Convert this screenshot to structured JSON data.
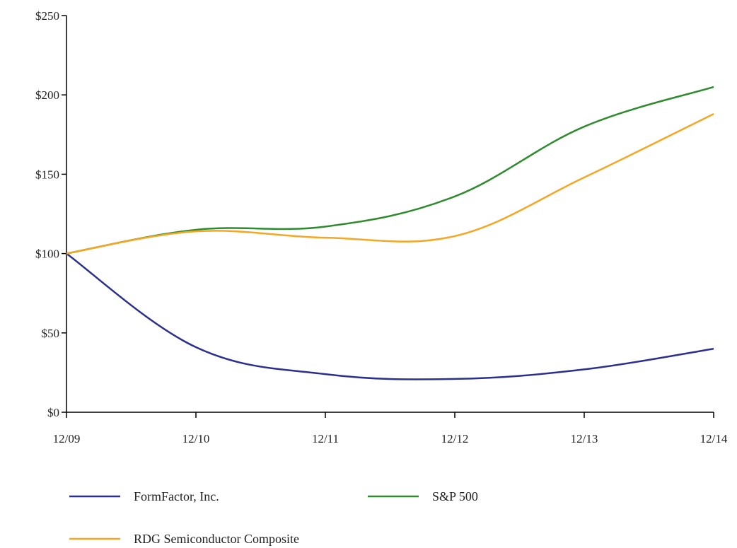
{
  "chart_data": {
    "type": "line",
    "title": "",
    "xlabel": "",
    "ylabel": "",
    "categories": [
      "12/09",
      "12/10",
      "12/11",
      "12/12",
      "12/13",
      "12/14"
    ],
    "y_ticks": [
      "$0",
      "$50",
      "$100",
      "$150",
      "$200",
      "$250"
    ],
    "ylim": [
      0,
      250
    ],
    "grid": false,
    "legend_position": "bottom",
    "series": [
      {
        "name": "FormFactor, Inc.",
        "color": "#2b2f8f",
        "values": [
          100,
          41,
          24,
          21,
          27,
          40
        ]
      },
      {
        "name": "S&P 500",
        "color": "#2e8b2e",
        "values": [
          100,
          115,
          117,
          136,
          180,
          205
        ]
      },
      {
        "name": "RDG Semiconductor Composite",
        "color": "#f5a623",
        "values": [
          100,
          114,
          110,
          111,
          148,
          188
        ]
      }
    ]
  }
}
